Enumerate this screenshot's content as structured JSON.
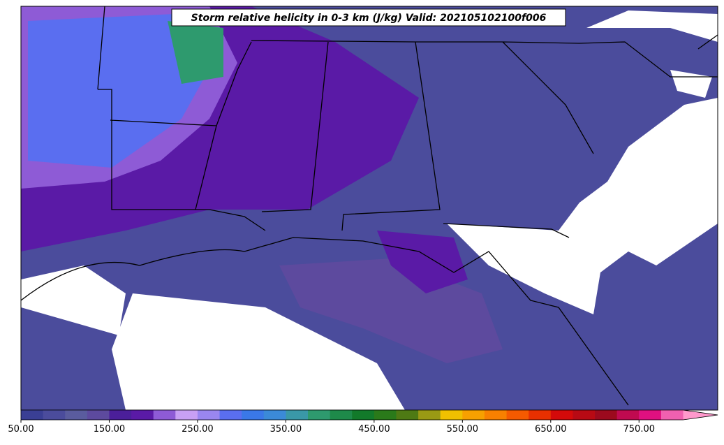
{
  "title": "Storm relative helicity in 0-3 km (J/kg) Valid: 202105102100f006",
  "colorbar": {
    "lim": [
      50,
      800
    ],
    "ticks": [
      {
        "value": 50,
        "label": "50.00"
      },
      {
        "value": 150,
        "label": "150.00"
      },
      {
        "value": 250,
        "label": "250.00"
      },
      {
        "value": 350,
        "label": "350.00"
      },
      {
        "value": 450,
        "label": "450.00"
      },
      {
        "value": 550,
        "label": "550.00"
      },
      {
        "value": 650,
        "label": "650.00"
      },
      {
        "value": 750,
        "label": "750.00"
      }
    ],
    "colors": [
      "#3a3f94",
      "#4b4c9c",
      "#5a5c9e",
      "#5d4a9e",
      "#4b1f9a",
      "#5a1aa6",
      "#8e5bd6",
      "#c8a0f4",
      "#9a86f0",
      "#5a6ef0",
      "#3a78e8",
      "#3b8ad8",
      "#3a98a8",
      "#2e9a6e",
      "#1e8a4a",
      "#127a2a",
      "#2a7a1a",
      "#4e7a14",
      "#9a9a14",
      "#f0c000",
      "#f7a000",
      "#f88000",
      "#f55a00",
      "#e83000",
      "#d40a0a",
      "#b80a14",
      "#9c0a1e",
      "#c00a50",
      "#e01080",
      "#f060b0"
    ],
    "extend_color": "#ff99cc"
  }
}
